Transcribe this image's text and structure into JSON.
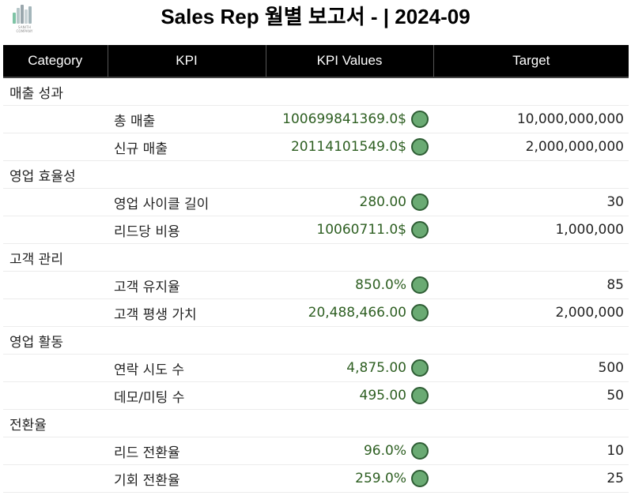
{
  "header": {
    "title": "Sales Rep 월별 보고서 - | 2024-09",
    "logo_icon": "company-logo-bar-chart",
    "logo_caption": "SANITH COMPANY"
  },
  "table": {
    "columns": [
      "Category",
      "KPI",
      "KPI Values",
      "Target"
    ],
    "status_color": "#6aaa73",
    "groups": [
      {
        "category": "매출 성과",
        "rows": [
          {
            "kpi": "총 매출",
            "value": "100699841369.0$",
            "target": "10,000,000,000"
          },
          {
            "kpi": "신규 매출",
            "value": "20114101549.0$",
            "target": "2,000,000,000"
          }
        ]
      },
      {
        "category": "영업 효율성",
        "rows": [
          {
            "kpi": "영업 사이클 길이",
            "value": "280.00",
            "target": "30"
          },
          {
            "kpi": "리드당 비용",
            "value": "10060711.0$",
            "target": "1,000,000"
          }
        ]
      },
      {
        "category": "고객 관리",
        "rows": [
          {
            "kpi": "고객 유지율",
            "value": "850.0%",
            "target": "85"
          },
          {
            "kpi": "고객 평생 가치",
            "value": "20,488,466.00",
            "target": "2,000,000"
          }
        ]
      },
      {
        "category": "영업 활동",
        "rows": [
          {
            "kpi": "연락 시도 수",
            "value": "4,875.00",
            "target": "500"
          },
          {
            "kpi": "데모/미팅 수",
            "value": "495.00",
            "target": "50"
          }
        ]
      },
      {
        "category": "전환율",
        "rows": [
          {
            "kpi": "리드 전환율",
            "value": "96.0%",
            "target": "10"
          },
          {
            "kpi": "기회 전환율",
            "value": "259.0%",
            "target": "25"
          }
        ]
      }
    ]
  }
}
